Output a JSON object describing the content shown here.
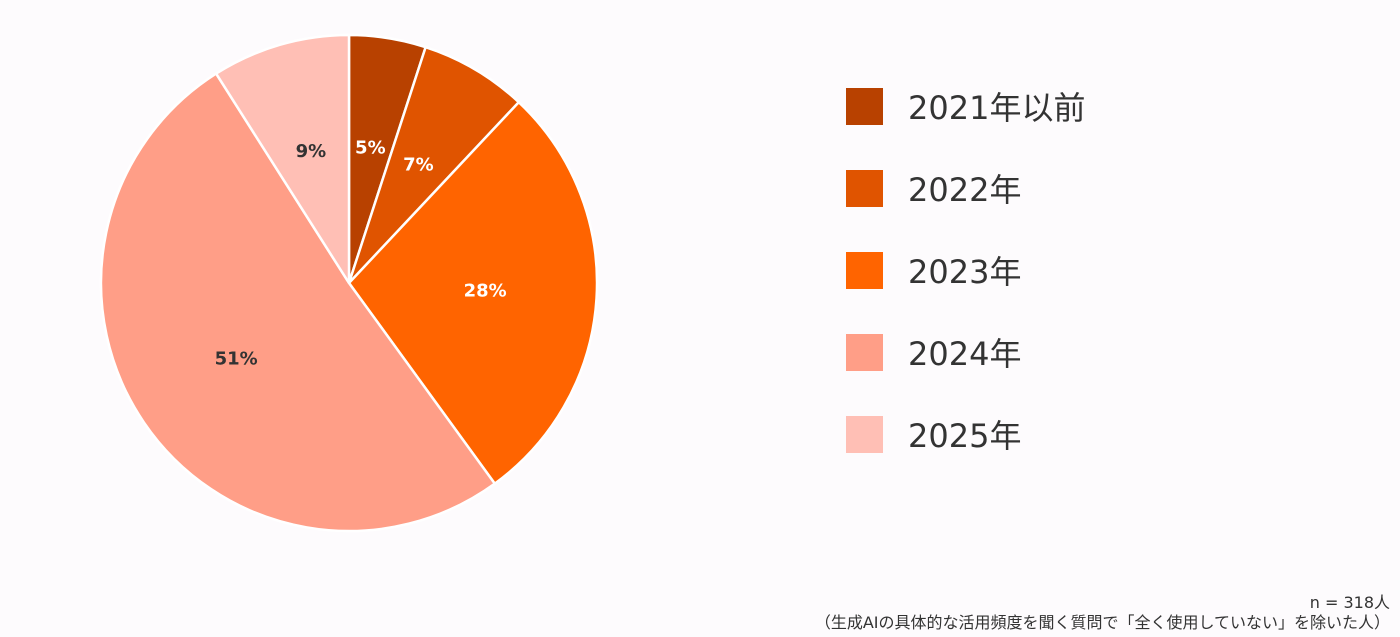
{
  "chart_data": {
    "type": "pie",
    "categories": [
      "2021年以前",
      "2022年",
      "2023年",
      "2024年",
      "2025年"
    ],
    "values": [
      5,
      7,
      28,
      51,
      9
    ],
    "data_labels": [
      "5%",
      "7%",
      "28%",
      "51%",
      "9%"
    ],
    "colors": [
      "#b84100",
      "#e05400",
      "#ff6400",
      "#ff9e87",
      "#ffbfb5"
    ],
    "label_colors": [
      "#ffffff",
      "#ffffff",
      "#ffffff",
      "#333333",
      "#333333"
    ],
    "legend_position": "right",
    "start_angle_deg": 0,
    "direction": "clockwise"
  },
  "footnote": {
    "sample_size": "n = 318人",
    "note": "（生成AIの具体的な活用頻度を聞く質問で「全く使用していない」を除いた人）"
  }
}
